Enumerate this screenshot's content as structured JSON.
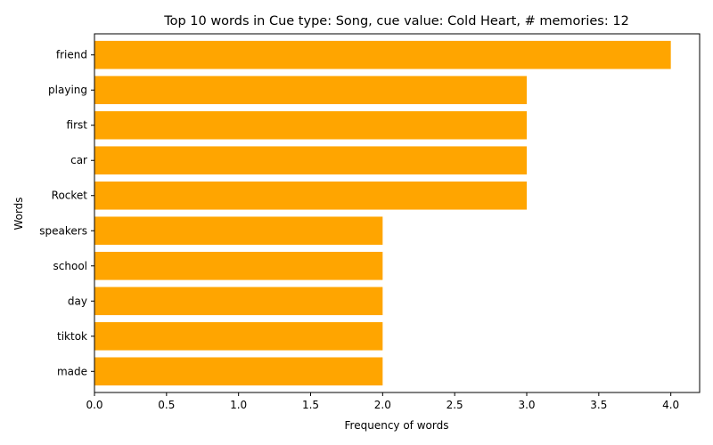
{
  "chart_data": {
    "type": "bar",
    "orientation": "horizontal",
    "title": "Top 10 words in Cue type: Song, cue value: Cold Heart, # memories: 12",
    "xlabel": "Frequency of words",
    "ylabel": "Words",
    "categories": [
      "friend",
      "playing",
      "first",
      "car",
      "Rocket",
      "speakers",
      "school",
      "day",
      "tiktok",
      "made"
    ],
    "values": [
      4,
      3,
      3,
      3,
      3,
      2,
      2,
      2,
      2,
      2
    ],
    "xlim": [
      0,
      4.2
    ],
    "xticks": [
      "0.0",
      "0.5",
      "1.0",
      "1.5",
      "2.0",
      "2.5",
      "3.0",
      "3.5",
      "4.0"
    ],
    "grid": false,
    "bar_color": "#ffa500"
  }
}
